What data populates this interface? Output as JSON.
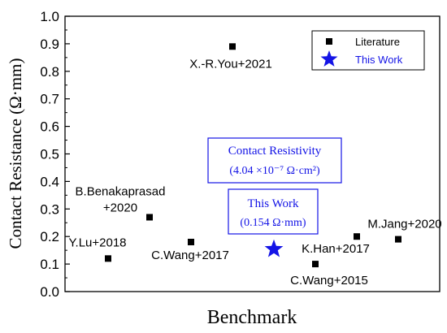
{
  "chart_data": {
    "type": "scatter",
    "title": "",
    "xlabel": "Benchmark",
    "ylabel": "Contact Resistance (Ω·mm)",
    "ylim": [
      0.0,
      1.0
    ],
    "yticks": [
      "0.0",
      "0.1",
      "0.2",
      "0.3",
      "0.4",
      "0.5",
      "0.6",
      "0.7",
      "0.8",
      "0.9",
      "1.0"
    ],
    "grid": false,
    "legend_position": "top-right",
    "series": [
      {
        "name": "Literature",
        "marker": "square",
        "color": "#000000",
        "points": [
          {
            "x": 1,
            "y": 0.12,
            "label": "Y.Lu+2018"
          },
          {
            "x": 2,
            "y": 0.27,
            "label": "B.Benakaprasad +2020",
            "label_lines": [
              "B.Benakaprasad",
              "+2020"
            ]
          },
          {
            "x": 3,
            "y": 0.18,
            "label": "C.Wang+2017"
          },
          {
            "x": 4,
            "y": 0.89,
            "label": "X.-R.You+2021"
          },
          {
            "x": 6,
            "y": 0.1,
            "label": "C.Wang+2015"
          },
          {
            "x": 7,
            "y": 0.2,
            "label": "K.Han+2017"
          },
          {
            "x": 8,
            "y": 0.19,
            "label": "M.Jang+2020"
          }
        ]
      },
      {
        "name": "This Work",
        "marker": "star",
        "color": "#1414e6",
        "points": [
          {
            "x": 5,
            "y": 0.154,
            "label": ""
          }
        ]
      }
    ],
    "annotations": [
      {
        "id": "resistivity",
        "lines": [
          "Contact Resistivity",
          "(4.04 ×10⁻⁷ Ω·cm²)"
        ],
        "color": "#1414e6"
      },
      {
        "id": "this_work",
        "lines": [
          "This Work",
          "(0.154 Ω·mm)"
        ],
        "color": "#1414e6"
      }
    ]
  }
}
